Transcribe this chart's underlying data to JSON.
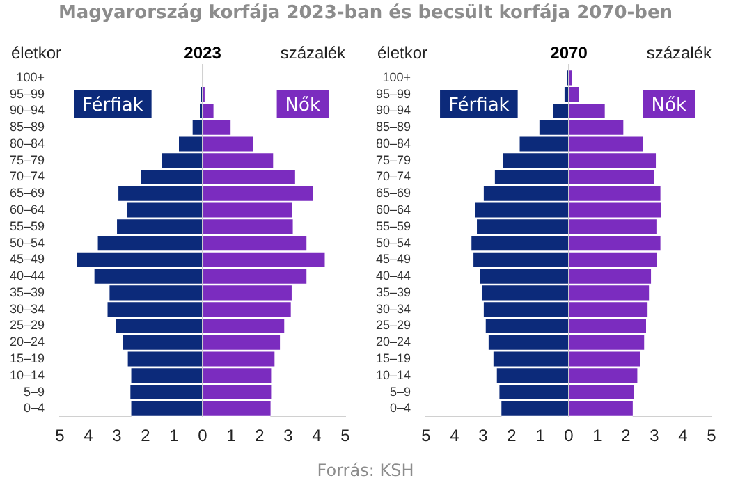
{
  "chart_data": [
    {
      "type": "bar",
      "orientation": "horizontal",
      "stacked": true,
      "title": "Magyarország korfája 2023-ban és becsült korfája 2070-ben",
      "subtitle": "2023",
      "ylabel": "életkor",
      "xlabel": "százalék",
      "categories": [
        "100+",
        "95–99",
        "90–94",
        "85–89",
        "80–84",
        "75–79",
        "70–74",
        "65–69",
        "60–64",
        "55–59",
        "50–54",
        "45–49",
        "40–44",
        "35–39",
        "30–34",
        "25–29",
        "20–24",
        "15–19",
        "10–14",
        "5–9",
        "0–4"
      ],
      "series": [
        {
          "name": "Férfiak",
          "color": "#0c2a7a",
          "values": [
            0,
            -0.05,
            -0.1,
            -0.35,
            -0.83,
            -1.43,
            -2.17,
            -2.95,
            -2.65,
            -3.0,
            -3.67,
            -4.41,
            -3.79,
            -3.26,
            -3.33,
            -3.05,
            -2.79,
            -2.62,
            -2.5,
            -2.53,
            -2.5
          ]
        },
        {
          "name": "Nők",
          "color": "#7b2cbf",
          "values": [
            0,
            0.07,
            0.38,
            0.98,
            1.78,
            2.47,
            3.24,
            3.86,
            3.14,
            3.16,
            3.64,
            4.28,
            3.64,
            3.12,
            3.09,
            2.86,
            2.71,
            2.52,
            2.4,
            2.4,
            2.38
          ]
        }
      ],
      "xlim": [
        -5,
        5
      ],
      "xticks": [
        {
          "value": -5,
          "label": "5"
        },
        {
          "value": -4,
          "label": "4"
        },
        {
          "value": -3,
          "label": "3"
        },
        {
          "value": -2,
          "label": "2"
        },
        {
          "value": -1,
          "label": "1"
        },
        0,
        1,
        2,
        3,
        4,
        5
      ],
      "annotations": [
        "Forrás: KSH"
      ]
    },
    {
      "type": "bar",
      "orientation": "horizontal",
      "stacked": true,
      "subtitle": "2070",
      "ylabel": "életkor",
      "xlabel": "százalék",
      "categories": [
        "100+",
        "95–99",
        "90–94",
        "85–89",
        "80–84",
        "75–79",
        "70–74",
        "65–69",
        "60–64",
        "55–59",
        "50–54",
        "45–49",
        "40–44",
        "35–39",
        "30–34",
        "25–29",
        "20–24",
        "15–19",
        "10–14",
        "5–9",
        "0–4"
      ],
      "series": [
        {
          "name": "Férfiak",
          "color": "#0c2a7a",
          "values": [
            -0.07,
            -0.15,
            -0.55,
            -1.03,
            -1.72,
            -2.31,
            -2.59,
            -2.98,
            -3.28,
            -3.22,
            -3.41,
            -3.34,
            -3.12,
            -3.05,
            -2.98,
            -2.91,
            -2.81,
            -2.64,
            -2.52,
            -2.43,
            -2.36
          ]
        },
        {
          "name": "Nők",
          "color": "#7b2cbf",
          "values": [
            0.1,
            0.36,
            1.26,
            1.91,
            2.59,
            3.05,
            3.0,
            3.21,
            3.24,
            3.07,
            3.21,
            3.09,
            2.88,
            2.81,
            2.76,
            2.71,
            2.64,
            2.5,
            2.4,
            2.29,
            2.24
          ]
        }
      ],
      "xlim": [
        -5,
        5
      ],
      "xticks": [
        {
          "value": -5,
          "label": "5"
        },
        {
          "value": -4,
          "label": "4"
        },
        {
          "value": -3,
          "label": "3"
        },
        {
          "value": -2,
          "label": "2"
        },
        {
          "value": -1,
          "label": "1"
        },
        0,
        1,
        2,
        3,
        4,
        5
      ]
    }
  ]
}
